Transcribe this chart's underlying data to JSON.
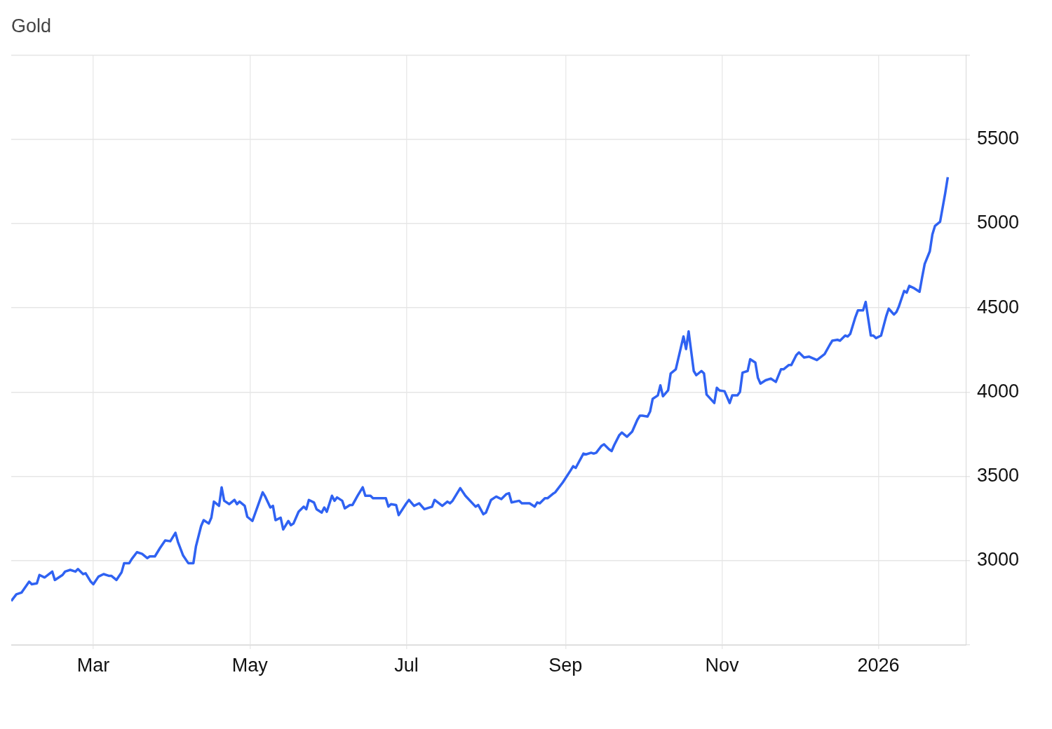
{
  "chart_data": {
    "type": "line",
    "title": "Gold",
    "color": "#2f62f2",
    "grid": true,
    "xlim": [
      "2025-01-28",
      "2026-02-04"
    ],
    "xticks": [
      {
        "value": "2025-03-01",
        "label": "Mar"
      },
      {
        "value": "2025-05-01",
        "label": "May"
      },
      {
        "value": "2025-07-01",
        "label": "Jul"
      },
      {
        "value": "2025-09-01",
        "label": "Sep"
      },
      {
        "value": "2025-11-01",
        "label": "Nov"
      },
      {
        "value": "2026-01-01",
        "label": "2026"
      }
    ],
    "ylim": [
      2500,
      6000
    ],
    "yticks": [
      {
        "value": 2500,
        "label": null
      },
      3000,
      3500,
      4000,
      4500,
      5000,
      5500,
      {
        "value": 6000,
        "label": null
      }
    ],
    "x": [
      "2025-01-28",
      "2025-01-30",
      "2025-02-01",
      "2025-02-04",
      "2025-02-05",
      "2025-02-07",
      "2025-02-08",
      "2025-02-10",
      "2025-02-13",
      "2025-02-14",
      "2025-02-17",
      "2025-02-18",
      "2025-02-20",
      "2025-02-22",
      "2025-02-23",
      "2025-02-25",
      "2025-02-26",
      "2025-02-28",
      "2025-03-01",
      "2025-03-03",
      "2025-03-05",
      "2025-03-07",
      "2025-03-08",
      "2025-03-10",
      "2025-03-12",
      "2025-03-13",
      "2025-03-15",
      "2025-03-16",
      "2025-03-18",
      "2025-03-20",
      "2025-03-22",
      "2025-03-23",
      "2025-03-25",
      "2025-03-27",
      "2025-03-29",
      "2025-03-31",
      "2025-04-02",
      "2025-04-03",
      "2025-04-05",
      "2025-04-07",
      "2025-04-09",
      "2025-04-10",
      "2025-04-12",
      "2025-04-13",
      "2025-04-15",
      "2025-04-16",
      "2025-04-17",
      "2025-04-19",
      "2025-04-20",
      "2025-04-21",
      "2025-04-23",
      "2025-04-25",
      "2025-04-26",
      "2025-04-27",
      "2025-04-29",
      "2025-04-30",
      "2025-05-02",
      "2025-05-06",
      "2025-05-07",
      "2025-05-09",
      "2025-05-10",
      "2025-05-11",
      "2025-05-13",
      "2025-05-14",
      "2025-05-16",
      "2025-05-17",
      "2025-05-18",
      "2025-05-20",
      "2025-05-22",
      "2025-05-23",
      "2025-05-24",
      "2025-05-26",
      "2025-05-27",
      "2025-05-29",
      "2025-05-30",
      "2025-05-31",
      "2025-06-02",
      "2025-06-03",
      "2025-06-04",
      "2025-06-06",
      "2025-06-07",
      "2025-06-09",
      "2025-06-10",
      "2025-06-12",
      "2025-06-14",
      "2025-06-15",
      "2025-06-17",
      "2025-06-18",
      "2025-06-23",
      "2025-06-24",
      "2025-06-25",
      "2025-06-27",
      "2025-06-28",
      "2025-07-01",
      "2025-07-02",
      "2025-07-04",
      "2025-07-06",
      "2025-07-08",
      "2025-07-11",
      "2025-07-12",
      "2025-07-15",
      "2025-07-17",
      "2025-07-18",
      "2025-07-19",
      "2025-07-22",
      "2025-07-24",
      "2025-07-28",
      "2025-07-29",
      "2025-07-31",
      "2025-08-01",
      "2025-08-03",
      "2025-08-05",
      "2025-08-07",
      "2025-08-09",
      "2025-08-10",
      "2025-08-11",
      "2025-08-14",
      "2025-08-15",
      "2025-08-18",
      "2025-08-20",
      "2025-08-21",
      "2025-08-22",
      "2025-08-24",
      "2025-08-25",
      "2025-08-27",
      "2025-08-28",
      "2025-08-31",
      "2025-09-03",
      "2025-09-04",
      "2025-09-05",
      "2025-09-08",
      "2025-09-09",
      "2025-09-11",
      "2025-09-12",
      "2025-09-13",
      "2025-09-15",
      "2025-09-16",
      "2025-09-18",
      "2025-09-19",
      "2025-09-20",
      "2025-09-22",
      "2025-09-23",
      "2025-09-25",
      "2025-09-27",
      "2025-09-29",
      "2025-09-30",
      "2025-10-01",
      "2025-10-03",
      "2025-10-04",
      "2025-10-05",
      "2025-10-07",
      "2025-10-08",
      "2025-10-09",
      "2025-10-11",
      "2025-10-12",
      "2025-10-14",
      "2025-10-15",
      "2025-10-17",
      "2025-10-18",
      "2025-10-19",
      "2025-10-21",
      "2025-10-22",
      "2025-10-24",
      "2025-10-25",
      "2025-10-26",
      "2025-10-29",
      "2025-10-30",
      "2025-10-31",
      "2025-11-02",
      "2025-11-04",
      "2025-11-05",
      "2025-11-07",
      "2025-11-08",
      "2025-11-09",
      "2025-11-11",
      "2025-11-12",
      "2025-11-14",
      "2025-11-15",
      "2025-11-16",
      "2025-11-18",
      "2025-11-20",
      "2025-11-22",
      "2025-11-24",
      "2025-11-25",
      "2025-11-27",
      "2025-11-28",
      "2025-11-30",
      "2025-12-01",
      "2025-12-03",
      "2025-12-05",
      "2025-12-08",
      "2025-12-11",
      "2025-12-13",
      "2025-12-14",
      "2025-12-16",
      "2025-12-17",
      "2025-12-19",
      "2025-12-20",
      "2025-12-21",
      "2025-12-23",
      "2025-12-24",
      "2025-12-26",
      "2025-12-27",
      "2025-12-29",
      "2025-12-30",
      "2025-12-31",
      "2026-01-02",
      "2026-01-04",
      "2026-01-05",
      "2026-01-07",
      "2026-01-08",
      "2026-01-09",
      "2026-01-11",
      "2026-01-12",
      "2026-01-13",
      "2026-01-15",
      "2026-01-17",
      "2026-01-18",
      "2026-01-19",
      "2026-01-21",
      "2026-01-22",
      "2026-01-23",
      "2026-01-25",
      "2026-01-27",
      "2026-01-28"
    ],
    "values": [
      2760,
      2800,
      2810,
      2875,
      2860,
      2865,
      2915,
      2900,
      2935,
      2885,
      2915,
      2935,
      2945,
      2935,
      2950,
      2920,
      2925,
      2875,
      2860,
      2905,
      2920,
      2910,
      2910,
      2885,
      2930,
      2985,
      2985,
      3010,
      3050,
      3040,
      3015,
      3025,
      3025,
      3075,
      3120,
      3115,
      3165,
      3110,
      3030,
      2985,
      2985,
      3085,
      3205,
      3240,
      3220,
      3255,
      3350,
      3325,
      3435,
      3355,
      3335,
      3360,
      3335,
      3350,
      3325,
      3260,
      3235,
      3405,
      3380,
      3315,
      3325,
      3240,
      3255,
      3185,
      3235,
      3210,
      3220,
      3290,
      3320,
      3305,
      3360,
      3345,
      3305,
      3285,
      3315,
      3290,
      3385,
      3355,
      3375,
      3355,
      3310,
      3330,
      3330,
      3385,
      3435,
      3385,
      3385,
      3370,
      3370,
      3320,
      3335,
      3330,
      3270,
      3340,
      3360,
      3325,
      3340,
      3305,
      3320,
      3360,
      3325,
      3350,
      3340,
      3355,
      3430,
      3385,
      3320,
      3330,
      3275,
      3285,
      3360,
      3380,
      3365,
      3395,
      3400,
      3345,
      3355,
      3340,
      3340,
      3320,
      3345,
      3340,
      3370,
      3370,
      3395,
      3405,
      3465,
      3535,
      3560,
      3550,
      3635,
      3630,
      3640,
      3635,
      3640,
      3680,
      3690,
      3660,
      3650,
      3685,
      3745,
      3760,
      3735,
      3765,
      3835,
      3860,
      3860,
      3855,
      3885,
      3960,
      3980,
      4040,
      3975,
      4010,
      4110,
      4135,
      4200,
      4330,
      4255,
      4360,
      4125,
      4100,
      4125,
      4110,
      3985,
      3935,
      4025,
      4010,
      4005,
      3935,
      3980,
      3980,
      4000,
      4115,
      4125,
      4195,
      4175,
      4085,
      4050,
      4070,
      4080,
      4060,
      4135,
      4135,
      4160,
      4160,
      4220,
      4235,
      4205,
      4210,
      4190,
      4225,
      4280,
      4305,
      4310,
      4305,
      4335,
      4330,
      4345,
      4445,
      4485,
      4485,
      4535,
      4335,
      4335,
      4320,
      4335,
      4450,
      4495,
      4460,
      4475,
      4510,
      4600,
      4590,
      4630,
      4615,
      4595,
      4680,
      4760,
      4835,
      4935,
      4985,
      5010,
      5180,
      5275
    ]
  }
}
